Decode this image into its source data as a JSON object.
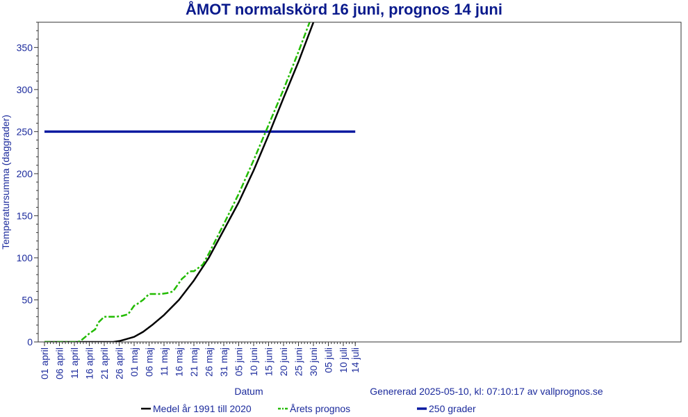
{
  "chart_data": {
    "type": "line",
    "title": "ÅMOT normalskörd 16 juni, prognos 14 juni",
    "xlabel": "Datum",
    "ylabel": "Temperatursumma (daggrader)",
    "footer": "Genererad 2025-05-10, kl: 07:10:17 av vallprognos.se",
    "ylim": [
      0,
      380
    ],
    "yticks": [
      0,
      50,
      100,
      150,
      200,
      250,
      300,
      350
    ],
    "xticks": [
      "01 april",
      "06 april",
      "11 april",
      "16 april",
      "21 april",
      "26 april",
      "01 maj",
      "06 maj",
      "11 maj",
      "16 maj",
      "21 maj",
      "26 maj",
      "31 maj",
      "05 juni",
      "10 juni",
      "15 juni",
      "20 juni",
      "25 juni",
      "30 juni",
      "05 juli",
      "10 juli",
      "14 juli"
    ],
    "xlim_days": [
      0,
      104
    ],
    "grid": false,
    "legend_position": "bottom",
    "series": [
      {
        "name": "Medel år 1991 till 2020",
        "color": "#000000",
        "style": "solid",
        "x": [
          0,
          10,
          20,
          23,
          25,
          27,
          30,
          33,
          36,
          40,
          45,
          50,
          55,
          60,
          65,
          70,
          75,
          80,
          85,
          90,
          95
        ],
        "values": [
          0,
          0,
          0,
          0,
          1,
          3,
          6,
          12,
          20,
          32,
          50,
          73,
          100,
          133,
          166,
          204,
          246,
          290,
          333,
          380,
          428
        ]
      },
      {
        "name": "Årets prognos",
        "color": "#22bb00",
        "style": "dash-dot",
        "x": [
          0,
          11,
          12,
          15,
          17,
          18,
          20,
          22,
          24,
          26,
          28,
          30,
          31,
          33,
          35,
          37,
          39,
          41,
          43,
          44,
          46,
          47,
          48,
          49,
          50,
          53,
          55,
          60,
          65,
          70,
          75,
          80,
          85,
          90,
          92
        ],
        "values": [
          0,
          0,
          1,
          10,
          15,
          23,
          30,
          30,
          30,
          31,
          33,
          43,
          45,
          50,
          57,
          57,
          57,
          58,
          60,
          65,
          75,
          78,
          82,
          84,
          84,
          92,
          105,
          140,
          176,
          216,
          258,
          300,
          345,
          392,
          410
        ]
      },
      {
        "name": "250 grader",
        "color": "#0a1aa0",
        "style": "solid-thick",
        "x": [
          0,
          104
        ],
        "values": [
          250,
          250
        ]
      }
    ]
  }
}
